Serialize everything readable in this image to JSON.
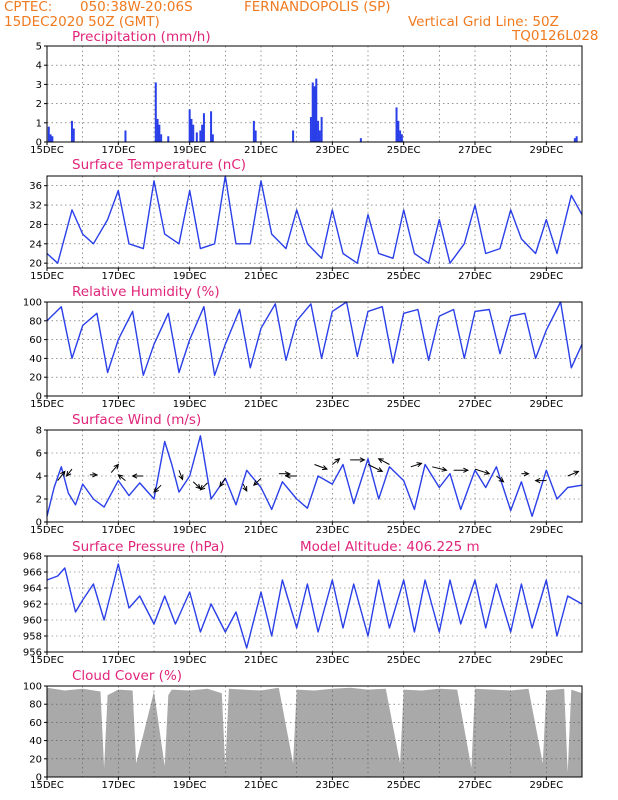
{
  "header": {
    "source": "CPTEC:",
    "location_coords": "050:38W-20:06S",
    "location_name": "FERNANDOPOLIS (SP)",
    "run_time": "15DEC2020 50Z (GMT)",
    "vertical_grid": "Vertical Grid Line: 50Z",
    "station_id": "TQ0126L028"
  },
  "date_labels": [
    "15DEC",
    "17DEC",
    "19DEC",
    "21DEC",
    "23DEC",
    "25DEC",
    "27DEC",
    "29DEC"
  ],
  "colors": {
    "line": "#2a3fe8",
    "title": "#e0257a",
    "header": "#f07a20",
    "cloud": "#a9a9a9",
    "grid": "#555555"
  },
  "chart_data": [
    {
      "type": "bar",
      "name": "precipitation",
      "title": "Precipitation (mm/h)",
      "ylim": [
        0,
        5
      ],
      "yticks": [
        0,
        1,
        2,
        3,
        4,
        5
      ],
      "x_range": [
        0,
        15
      ],
      "x": [
        0.05,
        0.1,
        0.15,
        0.7,
        0.75,
        2.2,
        3.05,
        3.1,
        3.15,
        3.2,
        3.4,
        4.0,
        4.05,
        4.1,
        4.2,
        4.3,
        4.35,
        4.4,
        4.6,
        4.65,
        5.8,
        5.85,
        6.9,
        7.4,
        7.45,
        7.5,
        7.55,
        7.6,
        7.65,
        7.7,
        8.8,
        9.8,
        9.85,
        9.9,
        9.95,
        14.8,
        14.85
      ],
      "values": [
        0.8,
        0.4,
        0.3,
        1.1,
        0.7,
        0.6,
        3.1,
        1.2,
        0.9,
        0.4,
        0.3,
        1.7,
        1.2,
        0.9,
        0.5,
        0.6,
        0.9,
        1.5,
        1.6,
        0.4,
        1.1,
        0.6,
        0.6,
        1.3,
        3.1,
        2.9,
        3.3,
        1.1,
        0.6,
        1.3,
        0.2,
        1.8,
        1.1,
        0.6,
        0.4,
        0.2,
        0.3
      ]
    },
    {
      "type": "line",
      "name": "temperature",
      "title": "Surface Temperature (nC)",
      "ylim": [
        19,
        38
      ],
      "yticks": [
        20,
        24,
        28,
        32,
        36
      ],
      "x_range": [
        0,
        15
      ],
      "x": [
        0,
        0.3,
        0.7,
        1,
        1.3,
        1.7,
        2,
        2.3,
        2.7,
        3,
        3.3,
        3.7,
        4,
        4.3,
        4.7,
        5,
        5.3,
        5.7,
        6,
        6.3,
        6.7,
        7,
        7.3,
        7.7,
        8,
        8.3,
        8.7,
        9,
        9.3,
        9.7,
        10,
        10.3,
        10.7,
        11,
        11.3,
        11.7,
        12,
        12.3,
        12.7,
        13,
        13.3,
        13.7,
        14,
        14.3,
        14.7,
        15
      ],
      "values": [
        22,
        20,
        31,
        26,
        24,
        29,
        35,
        24,
        23,
        37,
        26,
        24,
        35,
        23,
        24,
        38,
        24,
        24,
        37,
        26,
        23,
        31,
        24,
        21,
        31,
        22,
        20,
        30,
        22,
        21,
        31,
        22,
        20,
        29,
        20,
        24,
        32,
        22,
        23,
        31,
        25,
        22,
        29,
        22,
        34,
        30
      ]
    },
    {
      "type": "line",
      "name": "humidity",
      "title": "Relative Humidity (%)",
      "ylim": [
        0,
        100
      ],
      "yticks": [
        0,
        20,
        40,
        60,
        80,
        100
      ],
      "x_range": [
        0,
        15
      ],
      "x": [
        0,
        0.4,
        0.7,
        1,
        1.4,
        1.7,
        2,
        2.4,
        2.7,
        3,
        3.4,
        3.7,
        4,
        4.4,
        4.7,
        5,
        5.4,
        5.7,
        6,
        6.4,
        6.7,
        7,
        7.4,
        7.7,
        8,
        8.4,
        8.7,
        9,
        9.4,
        9.7,
        10,
        10.4,
        10.7,
        11,
        11.4,
        11.7,
        12,
        12.4,
        12.7,
        13,
        13.4,
        13.7,
        14,
        14.4,
        14.7,
        15
      ],
      "values": [
        80,
        95,
        40,
        75,
        88,
        25,
        60,
        90,
        22,
        55,
        88,
        25,
        60,
        95,
        22,
        55,
        92,
        30,
        72,
        98,
        38,
        80,
        98,
        40,
        90,
        100,
        42,
        90,
        95,
        35,
        88,
        92,
        38,
        85,
        92,
        40,
        90,
        92,
        45,
        85,
        88,
        40,
        70,
        100,
        30,
        55
      ]
    },
    {
      "type": "line",
      "name": "wind",
      "title": "Surface Wind (m/s)",
      "ylim": [
        0,
        8
      ],
      "yticks": [
        0,
        2,
        4,
        6,
        8
      ],
      "x_range": [
        0,
        15
      ],
      "x": [
        0,
        0.2,
        0.4,
        0.6,
        0.8,
        1,
        1.3,
        1.6,
        2,
        2.3,
        2.6,
        3,
        3.3,
        3.5,
        3.7,
        4,
        4.3,
        4.6,
        5,
        5.3,
        5.6,
        6,
        6.3,
        6.6,
        7,
        7.3,
        7.6,
        8,
        8.3,
        8.6,
        9,
        9.3,
        9.6,
        10,
        10.3,
        10.6,
        11,
        11.3,
        11.6,
        12,
        12.3,
        12.6,
        13,
        13.3,
        13.6,
        14,
        14.3,
        14.6,
        15
      ],
      "values": [
        0.5,
        3,
        4.8,
        2.5,
        1.5,
        3.3,
        2,
        1.3,
        3.6,
        2.3,
        3.4,
        2,
        7,
        5,
        2.6,
        4,
        7.5,
        2,
        3.8,
        1.5,
        4.5,
        3,
        1.1,
        3.5,
        2,
        1.2,
        4,
        3.3,
        5,
        1.6,
        5.5,
        2,
        4.8,
        3.6,
        1.1,
        5,
        3,
        4.2,
        1.1,
        4.5,
        3,
        4.8,
        1,
        3.5,
        0.5,
        4.5,
        2,
        3,
        3.2
      ],
      "arrows": [
        {
          "x": 0.3,
          "y": 3.6,
          "dx": 0.2,
          "dy": 0.8
        },
        {
          "x": 0.7,
          "y": 4.6,
          "dx": -0.15,
          "dy": -0.6
        },
        {
          "x": 1.2,
          "y": 4.1,
          "dx": 0.2,
          "dy": 0
        },
        {
          "x": 1.8,
          "y": 4.3,
          "dx": 0.2,
          "dy": 0.7
        },
        {
          "x": 2.2,
          "y": 3.6,
          "dx": -0.2,
          "dy": 0.5
        },
        {
          "x": 2.7,
          "y": 4,
          "dx": -0.3,
          "dy": 0
        },
        {
          "x": 3.2,
          "y": 3.2,
          "dx": -0.2,
          "dy": -0.6
        },
        {
          "x": 3.7,
          "y": 4.5,
          "dx": 0.1,
          "dy": -0.8
        },
        {
          "x": 4.1,
          "y": 3.5,
          "dx": 0.2,
          "dy": -0.6
        },
        {
          "x": 4.5,
          "y": 3.4,
          "dx": -0.2,
          "dy": -0.6
        },
        {
          "x": 5,
          "y": 3.8,
          "dx": -0.15,
          "dy": -0.7
        },
        {
          "x": 5.5,
          "y": 3.3,
          "dx": 0.1,
          "dy": -0.6
        },
        {
          "x": 6,
          "y": 3.8,
          "dx": -0.2,
          "dy": -0.6
        },
        {
          "x": 6.5,
          "y": 4.2,
          "dx": 0.3,
          "dy": 0
        },
        {
          "x": 7,
          "y": 4,
          "dx": -0.3,
          "dy": 0
        },
        {
          "x": 7.5,
          "y": 5,
          "dx": 0.35,
          "dy": -0.4
        },
        {
          "x": 8,
          "y": 5,
          "dx": 0.2,
          "dy": 0.5
        },
        {
          "x": 8.5,
          "y": 5.4,
          "dx": 0.4,
          "dy": 0
        },
        {
          "x": 9,
          "y": 5,
          "dx": 0.4,
          "dy": -0.6
        },
        {
          "x": 9.6,
          "y": 5,
          "dx": -0.3,
          "dy": 0.5
        },
        {
          "x": 10.2,
          "y": 4.8,
          "dx": 0.3,
          "dy": 0.3
        },
        {
          "x": 10.8,
          "y": 4.8,
          "dx": 0.4,
          "dy": -0.3
        },
        {
          "x": 11.4,
          "y": 4.5,
          "dx": 0.4,
          "dy": 0
        },
        {
          "x": 12,
          "y": 4.6,
          "dx": 0.4,
          "dy": -0.4
        },
        {
          "x": 12.6,
          "y": 4,
          "dx": 0.2,
          "dy": -0.5
        },
        {
          "x": 13.3,
          "y": 4.2,
          "dx": 0.2,
          "dy": 0
        },
        {
          "x": 14,
          "y": 3.6,
          "dx": -0.3,
          "dy": 0
        },
        {
          "x": 14.6,
          "y": 4,
          "dx": 0.3,
          "dy": 0.4
        }
      ]
    },
    {
      "type": "line",
      "name": "pressure",
      "title": "Surface Pressure (hPa)",
      "annotation": "Model Altitude: 406.225 m",
      "ylim": [
        956,
        968
      ],
      "yticks": [
        956,
        958,
        960,
        962,
        964,
        966,
        968
      ],
      "x_range": [
        0,
        15
      ],
      "x": [
        0,
        0.3,
        0.5,
        0.8,
        1,
        1.3,
        1.6,
        2,
        2.3,
        2.6,
        3,
        3.3,
        3.6,
        4,
        4.3,
        4.6,
        5,
        5.3,
        5.6,
        6,
        6.3,
        6.6,
        7,
        7.3,
        7.6,
        8,
        8.3,
        8.6,
        9,
        9.3,
        9.6,
        10,
        10.3,
        10.6,
        11,
        11.3,
        11.6,
        12,
        12.3,
        12.6,
        13,
        13.3,
        13.6,
        14,
        14.3,
        14.6,
        15
      ],
      "values": [
        965,
        965.5,
        966.5,
        961,
        962.5,
        964.5,
        960,
        967,
        961.5,
        963,
        959.5,
        963,
        959.5,
        963.5,
        958.5,
        962,
        958.5,
        961,
        956.5,
        963.5,
        958,
        965,
        959,
        964.5,
        958.5,
        965,
        959,
        964.5,
        958,
        965,
        959,
        965,
        958.5,
        965,
        958.5,
        965,
        959.5,
        965,
        959,
        964.5,
        958.5,
        964.5,
        959,
        965,
        958,
        963,
        962
      ]
    },
    {
      "type": "area",
      "name": "cloud_cover",
      "title": "Cloud Cover (%)",
      "ylim": [
        0,
        100
      ],
      "yticks": [
        0,
        20,
        40,
        60,
        80,
        100
      ],
      "x_range": [
        0,
        15
      ],
      "x": [
        0,
        0.5,
        1,
        1.5,
        1.6,
        1.7,
        2,
        2.4,
        2.5,
        3,
        3.3,
        3.4,
        3.5,
        4,
        4.5,
        4.9,
        5,
        5.1,
        5.5,
        6,
        6.5,
        6.9,
        7,
        7.5,
        8,
        8.5,
        9,
        9.5,
        9.9,
        10,
        10.5,
        11,
        11.5,
        11.9,
        12,
        12.5,
        13,
        13.5,
        13.9,
        14,
        14.5,
        14.6,
        14.7,
        15
      ],
      "values": [
        98,
        95,
        97,
        94,
        10,
        90,
        96,
        95,
        15,
        94,
        12,
        90,
        96,
        95,
        97,
        92,
        10,
        97,
        96,
        95,
        98,
        15,
        96,
        95,
        97,
        98,
        96,
        97,
        15,
        96,
        95,
        97,
        96,
        10,
        97,
        96,
        95,
        97,
        15,
        95,
        97,
        5,
        96,
        92
      ]
    }
  ]
}
